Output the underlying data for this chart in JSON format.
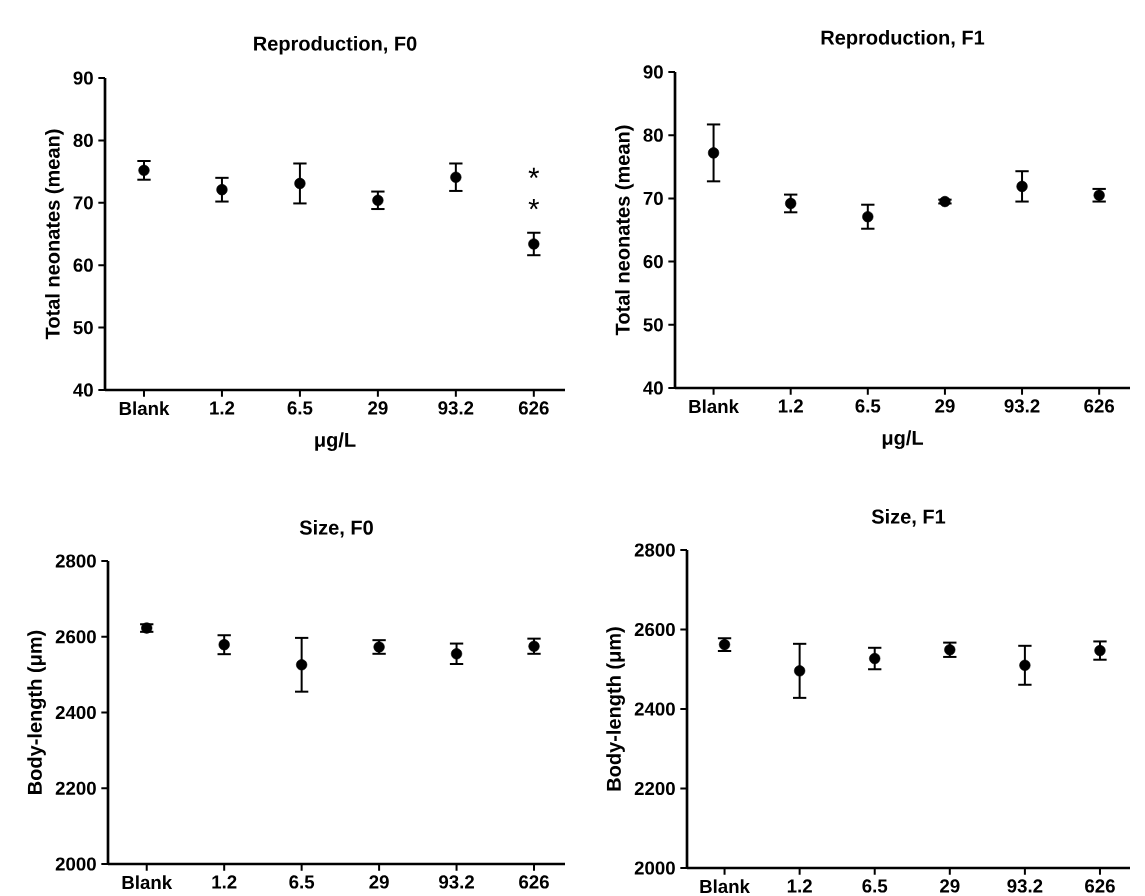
{
  "chart_data": [
    {
      "type": "scatter",
      "title": "Reproduction, F0",
      "xlabel": "μg/L",
      "ylabel": "Total neonates (mean)",
      "categories": [
        "Blank",
        "1.2",
        "6.5",
        "29",
        "93.2",
        "626"
      ],
      "values": [
        75.2,
        72.1,
        73.1,
        70.4,
        74.1,
        63.4
      ],
      "errors": [
        1.5,
        1.9,
        3.2,
        1.4,
        2.2,
        1.8
      ],
      "ylim": [
        40,
        90
      ],
      "yticks": [
        40,
        50,
        60,
        70,
        80,
        90
      ],
      "color": "#000000",
      "marker": "circle",
      "annotations": [
        "*",
        "*"
      ]
    },
    {
      "type": "scatter",
      "title": "Reproduction, F1",
      "xlabel": "μg/L",
      "ylabel": "Total neonates (mean)",
      "categories": [
        "Blank",
        "1.2",
        "6.5",
        "29",
        "93.2",
        "626"
      ],
      "values": [
        77.2,
        69.2,
        67.1,
        69.5,
        71.9,
        70.5
      ],
      "errors": [
        4.5,
        1.4,
        1.9,
        0.3,
        2.4,
        1.0
      ],
      "ylim": [
        40,
        90
      ],
      "yticks": [
        40,
        50,
        60,
        70,
        80,
        90
      ],
      "color": "#000000",
      "marker": "circle"
    },
    {
      "type": "scatter",
      "title": "Size, F0",
      "ylabel": "Body-length (μm)",
      "categories": [
        "Blank",
        "1.2",
        "6.5",
        "29",
        "93.2",
        "626"
      ],
      "values": [
        2623,
        2579,
        2526,
        2573,
        2555,
        2575
      ],
      "errors": [
        10,
        25,
        71,
        18,
        27,
        20
      ],
      "ylim": [
        2000,
        2800
      ],
      "yticks": [
        2000,
        2200,
        2400,
        2600,
        2800
      ],
      "color": "#000000",
      "marker": "circle"
    },
    {
      "type": "scatter",
      "title": "Size, F1",
      "ylabel": "Body-length (μm)",
      "categories": [
        "Blank",
        "1.2",
        "6.5",
        "29",
        "93.2",
        "626"
      ],
      "values": [
        2562,
        2496,
        2527,
        2549,
        2510,
        2547
      ],
      "errors": [
        16,
        68,
        27,
        18,
        49,
        23
      ],
      "ylim": [
        2000,
        2800
      ],
      "yticks": [
        2000,
        2200,
        2400,
        2600,
        2800
      ],
      "color": "#000000",
      "marker": "circle"
    }
  ]
}
